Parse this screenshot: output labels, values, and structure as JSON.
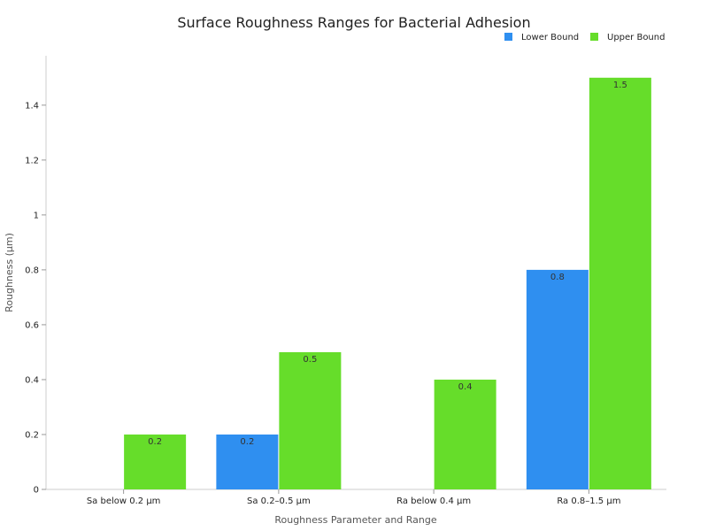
{
  "chart_data": {
    "type": "bar",
    "title": "Surface Roughness Ranges for Bacterial Adhesion",
    "xlabel": "Roughness Parameter and Range",
    "ylabel": "Roughness (µm)",
    "categories": [
      "Sa below 0.2 µm",
      "Sa 0.2–0.5 µm",
      "Ra below 0.4 µm",
      "Ra 0.8–1.5 µm"
    ],
    "series": [
      {
        "name": "Lower Bound",
        "color": "#2f8ff0",
        "values": [
          null,
          0.2,
          null,
          0.8
        ],
        "labels": [
          "",
          "0.2",
          "",
          "0.8"
        ]
      },
      {
        "name": "Upper Bound",
        "color": "#66dd2a",
        "values": [
          0.2,
          0.5,
          0.4,
          1.5
        ],
        "labels": [
          "0.2",
          "0.5",
          "0.4",
          "1.5"
        ]
      }
    ],
    "ylim": [
      0,
      1.58
    ],
    "yticks": [
      0,
      0.2,
      0.4,
      0.6,
      0.8,
      1,
      1.2,
      1.4
    ],
    "ytick_labels": [
      "0",
      "0.2",
      "0.4",
      "0.6",
      "0.8",
      "1",
      "1.2",
      "1.4"
    ],
    "legend_position": "top-right",
    "grid": false
  }
}
